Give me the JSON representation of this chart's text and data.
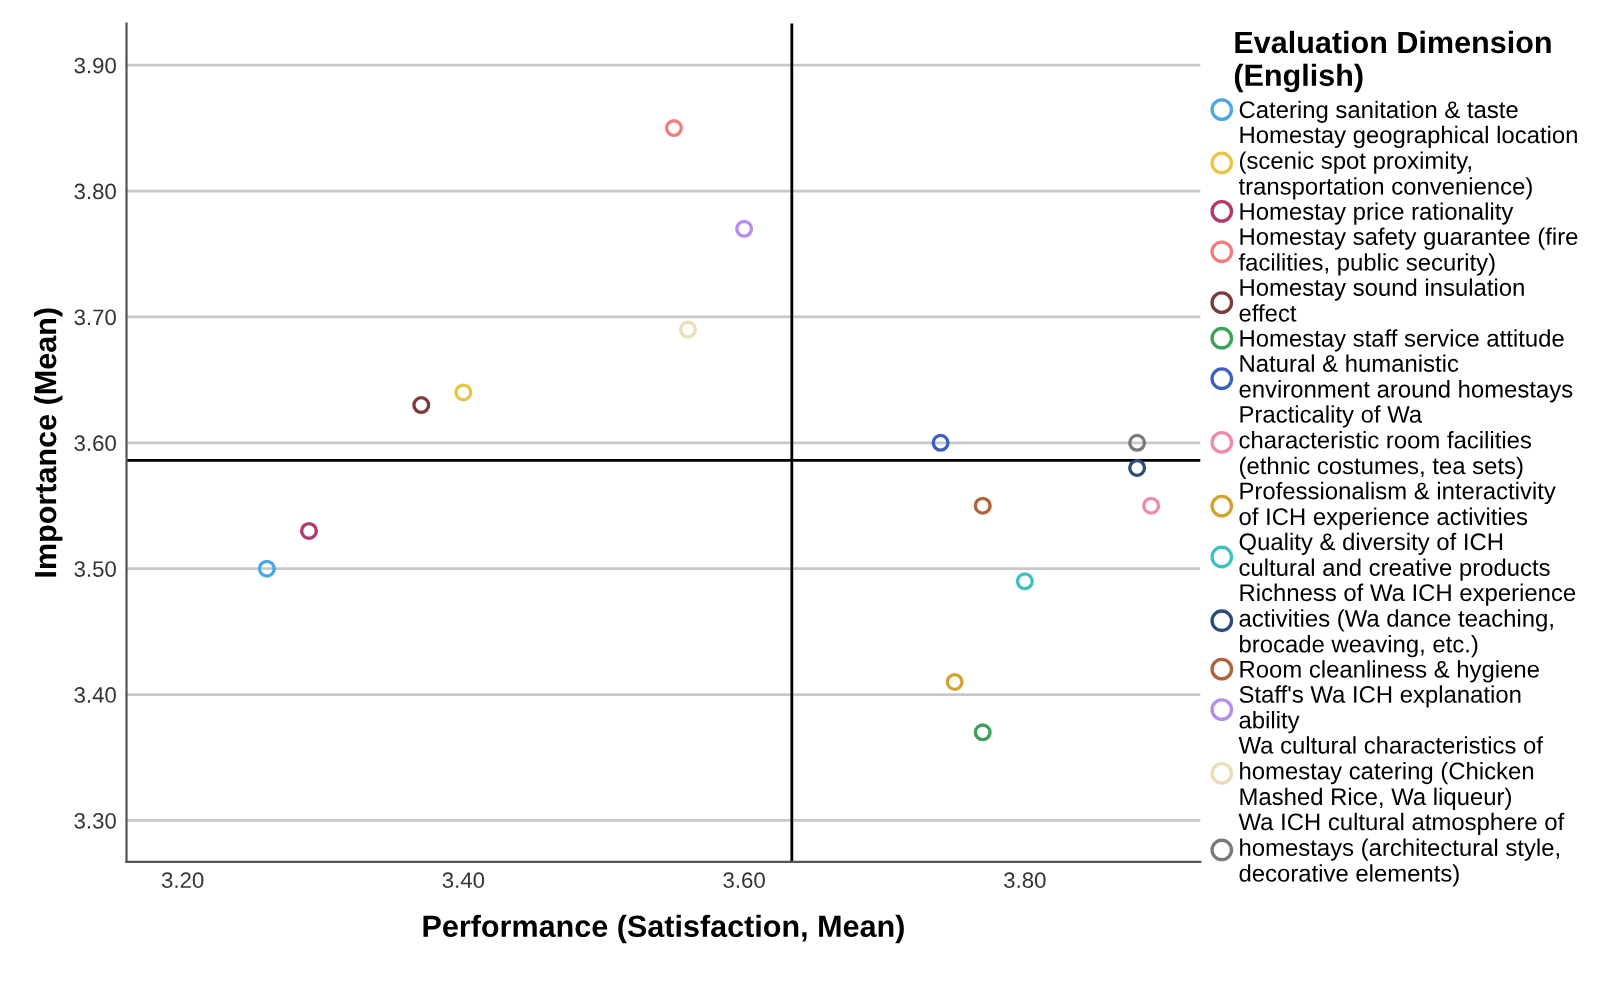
{
  "chart_data": {
    "type": "scatter",
    "xlabel": "Performance (Satisfaction, Mean)",
    "ylabel": "Importance (Mean)",
    "legend_title": "Evaluation Dimension (English)",
    "xlim": [
      3.16,
      3.925
    ],
    "ylim": [
      3.267,
      3.933
    ],
    "xticks": [
      {
        "value": 3.2,
        "label": "3.20"
      },
      {
        "value": 3.4,
        "label": "3.40"
      },
      {
        "value": 3.6,
        "label": "3.60"
      },
      {
        "value": 3.8,
        "label": "3.80"
      }
    ],
    "yticks": [
      {
        "value": 3.3,
        "label": "3.30"
      },
      {
        "value": 3.4,
        "label": "3.40"
      },
      {
        "value": 3.5,
        "label": "3.50"
      },
      {
        "value": 3.6,
        "label": "3.60"
      },
      {
        "value": 3.7,
        "label": "3.70"
      },
      {
        "value": 3.8,
        "label": "3.80"
      },
      {
        "value": 3.9,
        "label": "3.90"
      }
    ],
    "grid": "y",
    "legend": "right",
    "marker": "circle",
    "ref_lines": [
      {
        "axis": "x",
        "value": 3.634,
        "color": "#000000"
      },
      {
        "axis": "y",
        "value": 3.586,
        "color": "#000000"
      }
    ],
    "series": [
      {
        "name": "Catering sanitation & taste",
        "color": "#4aa8e8",
        "x": [
          3.26
        ],
        "values": [
          3.5
        ]
      },
      {
        "name": "Homestay geographical location (scenic spot proximity, transportation convenience)",
        "color": "#e8c547",
        "x": [
          3.4
        ],
        "values": [
          3.64
        ]
      },
      {
        "name": "Homestay price rationality",
        "color": "#b03a6e",
        "x": [
          3.29
        ],
        "values": [
          3.53
        ]
      },
      {
        "name": "Homestay safety guarantee (fire facilities, public security)",
        "color": "#f47c7c",
        "x": [
          3.55
        ],
        "values": [
          3.85
        ]
      },
      {
        "name": "Homestay sound insulation effect",
        "color": "#7b3b3b",
        "x": [
          3.37
        ],
        "values": [
          3.63
        ]
      },
      {
        "name": "Homestay staff service attitude",
        "color": "#3fa05a",
        "x": [
          3.77
        ],
        "values": [
          3.37
        ]
      },
      {
        "name": "Natural & humanistic environment around homestays",
        "color": "#3b5fc4",
        "x": [
          3.74
        ],
        "values": [
          3.6
        ]
      },
      {
        "name": "Practicality of Wa characteristic room facilities (ethnic costumes, tea sets)",
        "color": "#f08aaa",
        "x": [
          3.89
        ],
        "values": [
          3.55
        ]
      },
      {
        "name": "Professionalism & interactivity of ICH experience activities",
        "color": "#d4a22e",
        "x": [
          3.75
        ],
        "values": [
          3.41
        ]
      },
      {
        "name": "Quality & diversity of ICH cultural and creative products",
        "color": "#3fc1c0",
        "x": [
          3.8
        ],
        "values": [
          3.49
        ]
      },
      {
        "name": "Richness of Wa ICH experience activities (Wa dance teaching, brocade weaving, etc.)",
        "color": "#2c4a7a",
        "x": [
          3.88
        ],
        "values": [
          3.58
        ]
      },
      {
        "name": "Room cleanliness & hygiene",
        "color": "#b0643a",
        "x": [
          3.77
        ],
        "values": [
          3.55
        ]
      },
      {
        "name": "Staff's Wa ICH explanation ability",
        "color": "#b58cf2",
        "x": [
          3.6
        ],
        "values": [
          3.77
        ]
      },
      {
        "name": "Wa cultural characteristics of homestay catering (Chicken Mashed Rice, Wa liqueur)",
        "color": "#e8dfb8",
        "x": [
          3.56
        ],
        "values": [
          3.69
        ]
      },
      {
        "name": "Wa ICH cultural atmosphere of homestays (architectural style, decorative elements)",
        "color": "#7a7a7a",
        "x": [
          3.88
        ],
        "values": [
          3.6
        ]
      }
    ]
  }
}
